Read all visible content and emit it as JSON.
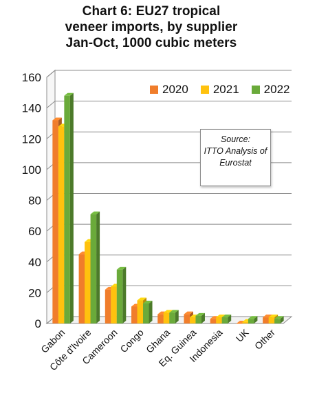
{
  "chart_data": {
    "type": "bar",
    "title": "Chart 6: EU27 tropical veneer imports, by supplier Jan-Oct, 1000 cubic meters",
    "title_lines": [
      "Chart 6: EU27 tropical",
      "veneer imports, by supplier",
      "Jan-Oct, 1000 cubic meters"
    ],
    "categories": [
      "Gabon",
      "Côte d'Ivoire",
      "Cameroon",
      "Congo",
      "Ghana",
      "Eq. Guinea",
      "Indonesia",
      "UK",
      "Other"
    ],
    "series": [
      {
        "name": "2020",
        "color": "#f07d2b",
        "values": [
          132,
          45,
          22,
          11,
          6,
          6,
          3,
          0,
          4
        ]
      },
      {
        "name": "2021",
        "color": "#ffc20e",
        "values": [
          128,
          53,
          24,
          15,
          7,
          4,
          4,
          1,
          4
        ]
      },
      {
        "name": "2022",
        "color": "#6aaa3a",
        "values": [
          148,
          71,
          35,
          13,
          7,
          5,
          4,
          3,
          3
        ]
      }
    ],
    "ylim": [
      0,
      160
    ],
    "yticks": [
      "0",
      "20",
      "40",
      "60",
      "80",
      "100",
      "120",
      "140",
      "160"
    ],
    "grid": true,
    "legend_position": "top-right",
    "annotation": [
      "Source:",
      "ITTO Analysis of",
      "Eurostat"
    ]
  }
}
